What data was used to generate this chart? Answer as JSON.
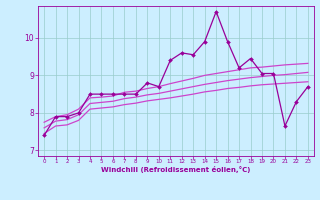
{
  "x": [
    0,
    1,
    2,
    3,
    4,
    5,
    6,
    7,
    8,
    9,
    10,
    11,
    12,
    13,
    14,
    15,
    16,
    17,
    18,
    19,
    20,
    21,
    22,
    23
  ],
  "y_main": [
    7.4,
    7.9,
    7.9,
    8.0,
    8.5,
    8.5,
    8.5,
    8.5,
    8.5,
    8.8,
    8.7,
    9.4,
    9.6,
    9.55,
    9.9,
    10.7,
    9.9,
    9.2,
    9.45,
    9.05,
    9.05,
    7.65,
    8.3,
    8.7
  ],
  "y_upper": [
    7.75,
    7.9,
    7.95,
    8.1,
    8.4,
    8.42,
    8.45,
    8.55,
    8.58,
    8.65,
    8.7,
    8.78,
    8.85,
    8.92,
    9.0,
    9.05,
    9.1,
    9.15,
    9.2,
    9.22,
    9.25,
    9.28,
    9.3,
    9.32
  ],
  "y_mid": [
    7.6,
    7.78,
    7.82,
    7.95,
    8.25,
    8.28,
    8.31,
    8.38,
    8.42,
    8.48,
    8.52,
    8.58,
    8.64,
    8.7,
    8.76,
    8.81,
    8.86,
    8.9,
    8.94,
    8.97,
    9.0,
    9.02,
    9.05,
    9.08
  ],
  "y_lower": [
    7.45,
    7.65,
    7.68,
    7.8,
    8.1,
    8.13,
    8.16,
    8.22,
    8.26,
    8.32,
    8.36,
    8.4,
    8.45,
    8.5,
    8.56,
    8.6,
    8.65,
    8.68,
    8.72,
    8.75,
    8.77,
    8.79,
    8.81,
    8.83
  ],
  "color_main": "#990099",
  "color_bands": "#cc44cc",
  "bg_color": "#cceeff",
  "grid_color": "#99cccc",
  "xlabel": "Windchill (Refroidissement éolien,°C)",
  "ylim": [
    6.85,
    10.85
  ],
  "xlim": [
    -0.5,
    23.5
  ],
  "yticks": [
    7,
    8,
    9,
    10
  ],
  "xticks": [
    0,
    1,
    2,
    3,
    4,
    5,
    6,
    7,
    8,
    9,
    10,
    11,
    12,
    13,
    14,
    15,
    16,
    17,
    18,
    19,
    20,
    21,
    22,
    23
  ]
}
